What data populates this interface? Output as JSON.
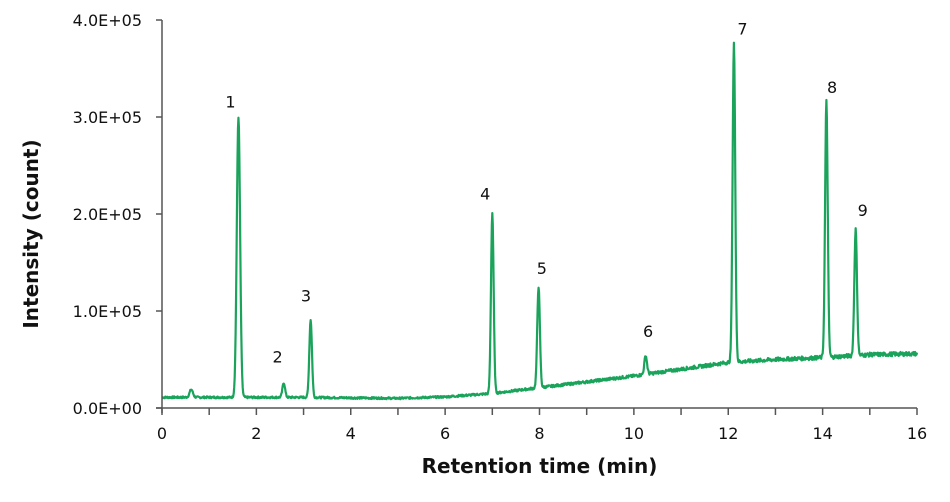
{
  "chart_data": {
    "type": "line",
    "title": "",
    "xlabel": "Retention time (min)",
    "ylabel": "Intensity (count)",
    "xlim": [
      0,
      16
    ],
    "ylim": [
      0,
      400000
    ],
    "x_ticks": [
      0,
      2,
      4,
      6,
      8,
      10,
      12,
      14,
      16
    ],
    "x_tick_labels": [
      "0",
      "2",
      "4",
      "6",
      "8",
      "10",
      "12",
      "14",
      "16"
    ],
    "x_minor_ticks": [
      1,
      3,
      5,
      7,
      9,
      11,
      13,
      15
    ],
    "y_ticks": [
      0,
      100000,
      200000,
      300000,
      400000
    ],
    "y_tick_labels": [
      "0.0E+00",
      "1.0E+05",
      "2.0E+05",
      "3.0E+05",
      "4.0E+05"
    ],
    "grid": false,
    "legend": null,
    "line_color": "#1aa35a",
    "baseline": {
      "x": [
        0,
        0.5,
        1.0,
        2.0,
        3.0,
        4.0,
        5.0,
        6.0,
        7.0,
        8.0,
        9.0,
        10.0,
        11.0,
        12.0,
        13.0,
        14.0,
        15.0,
        16.0
      ],
      "y": [
        11000,
        11000,
        11000,
        11000,
        11000,
        10500,
        10000,
        11500,
        15000,
        21000,
        27000,
        33000,
        40000,
        47000,
        50000,
        52000,
        55000,
        56000
      ]
    },
    "peaks": [
      {
        "label": "",
        "x": 0.62,
        "y": 19000
      },
      {
        "label": "1",
        "x": 1.62,
        "y": 300000
      },
      {
        "label": "2",
        "x": 2.58,
        "y": 26000
      },
      {
        "label": "3",
        "x": 3.15,
        "y": 91000
      },
      {
        "label": "4",
        "x": 7.0,
        "y": 201000
      },
      {
        "label": "5",
        "x": 7.98,
        "y": 125000
      },
      {
        "label": "6",
        "x": 10.25,
        "y": 54000
      },
      {
        "label": "7",
        "x": 12.12,
        "y": 376000
      },
      {
        "label": "8",
        "x": 14.08,
        "y": 316000
      },
      {
        "label": "9",
        "x": 14.7,
        "y": 184000
      }
    ],
    "peak_labels": [
      {
        "text": "1",
        "x": 1.45,
        "y": 310000
      },
      {
        "text": "2",
        "x": 2.45,
        "y": 47000
      },
      {
        "text": "3",
        "x": 3.05,
        "y": 110000
      },
      {
        "text": "4",
        "x": 6.85,
        "y": 215000
      },
      {
        "text": "5",
        "x": 8.05,
        "y": 138000
      },
      {
        "text": "6",
        "x": 10.3,
        "y": 73000
      },
      {
        "text": "7",
        "x": 12.3,
        "y": 385000
      },
      {
        "text": "8",
        "x": 14.2,
        "y": 325000
      },
      {
        "text": "9",
        "x": 14.85,
        "y": 198000
      }
    ]
  }
}
